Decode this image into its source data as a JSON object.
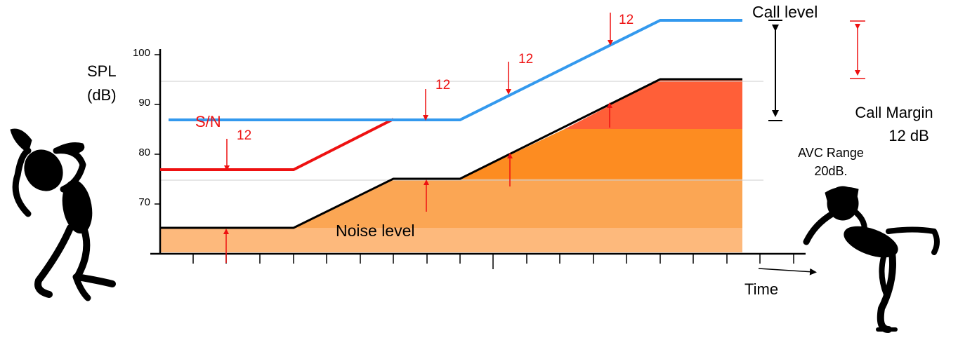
{
  "labels": {
    "y_axis_line1": "SPL",
    "y_axis_line2": "(dB)",
    "x_axis": "Time",
    "call_level": "Call level",
    "noise_level": "Noise level",
    "sn": "S/N",
    "margin_1": "12",
    "margin_2": "12",
    "margin_3": "12",
    "margin_4": "12",
    "call_margin_line1": "Call Margin",
    "call_margin_line2": "12 dB",
    "avc_line1": "AVC Range",
    "avc_line2": "20dB."
  },
  "y_ticks": [
    "100",
    "90",
    "80",
    "70"
  ],
  "colors": {
    "call_line": "#3399ee",
    "sn_line": "#ee1111",
    "noise_line": "#000000",
    "fill_light": "#fdb97c",
    "fill_mid": "#fba654",
    "fill_orange": "#fd8c21",
    "fill_red": "#ff5f38",
    "arrow_red": "#ee1111"
  }
}
